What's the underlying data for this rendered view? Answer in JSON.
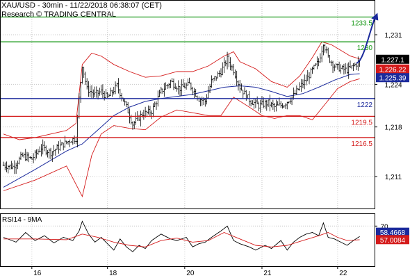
{
  "header": {
    "line1": "XAU/USD - 30min - 11/22/2018 06:38:07 (CET)",
    "line2": "Research © TRADING CENTRAL"
  },
  "chart_data": [
    {
      "type": "candlestick",
      "title": "XAU/USD - 30min - 11/22/2018 06:38:07 (CET)",
      "subtitle": "Research © TRADING CENTRAL",
      "x_tick_labels": [
        {
          "label": "16",
          "bar": 18
        },
        {
          "label": "18",
          "bar": 66
        },
        {
          "label": "20",
          "bar": 115
        },
        {
          "label": "21",
          "bar": 164
        },
        {
          "label": "22",
          "bar": 212
        }
      ],
      "bar_count": 230,
      "y_ticks": [
        1211,
        1218,
        1224,
        1231
      ],
      "y_tick_labels": [
        "1,211",
        "1,218",
        "1,224",
        "1,231"
      ],
      "ylim": [
        1206.5,
        1235.8
      ],
      "levels": [
        {
          "label": "1233.5",
          "value": 1233.5,
          "color": "#1a9a1a"
        },
        {
          "label": "1230",
          "value": 1230.0,
          "color": "#1a9a1a"
        },
        {
          "label": "1222",
          "value": 1222.0,
          "color": "#1b2a9c"
        },
        {
          "label": "1219.5",
          "value": 1219.5,
          "color": "#d41a1a"
        },
        {
          "label": "1216.5",
          "value": 1216.5,
          "color": "#d41a1a"
        }
      ],
      "tags": [
        {
          "label": "1,227.1",
          "value": 1227.1,
          "bg": "#000000",
          "fg": "#ffffff"
        },
        {
          "label": "1,226.22",
          "value": 1226.22,
          "bg": "#d41a1a",
          "fg": "#ffffff"
        },
        {
          "label": "1,225.39",
          "value": 1225.39,
          "bg": "#1b2a9c",
          "fg": "#ffffff"
        }
      ],
      "projection": {
        "from_bar": 224,
        "from_value": 1227.0,
        "to_bar": 236,
        "to_value": 1233.6,
        "color": "#1b2a9c"
      },
      "close_path": [
        [
          0,
          1212.6
        ],
        [
          6,
          1212.4
        ],
        [
          12,
          1213.9
        ],
        [
          18,
          1213.5
        ],
        [
          24,
          1215.1
        ],
        [
          30,
          1214.4
        ],
        [
          36,
          1215.3
        ],
        [
          42,
          1216.1
        ],
        [
          46,
          1216.4
        ],
        [
          48,
          1222.0
        ],
        [
          50,
          1226.8
        ],
        [
          53,
          1223.3
        ],
        [
          58,
          1222.6
        ],
        [
          62,
          1223.0
        ],
        [
          66,
          1222.1
        ],
        [
          72,
          1223.8
        ],
        [
          78,
          1220.8
        ],
        [
          82,
          1218.4
        ],
        [
          88,
          1219.8
        ],
        [
          94,
          1220.2
        ],
        [
          100,
          1223.0
        ],
        [
          106,
          1224.4
        ],
        [
          112,
          1223.4
        ],
        [
          118,
          1224.0
        ],
        [
          124,
          1222.0
        ],
        [
          128,
          1221.6
        ],
        [
          132,
          1224.4
        ],
        [
          138,
          1225.8
        ],
        [
          142,
          1227.6
        ],
        [
          146,
          1226.0
        ],
        [
          150,
          1223.6
        ],
        [
          156,
          1221.8
        ],
        [
          162,
          1221.0
        ],
        [
          168,
          1221.4
        ],
        [
          172,
          1220.8
        ],
        [
          178,
          1221.2
        ],
        [
          184,
          1222.4
        ],
        [
          188,
          1223.6
        ],
        [
          192,
          1224.6
        ],
        [
          196,
          1226.0
        ],
        [
          200,
          1227.2
        ],
        [
          203,
          1229.9
        ],
        [
          206,
          1227.8
        ],
        [
          210,
          1226.6
        ],
        [
          214,
          1226.2
        ],
        [
          218,
          1226.0
        ],
        [
          222,
          1226.6
        ],
        [
          226,
          1227.2
        ]
      ],
      "ma_path": [
        [
          0,
          1209.5
        ],
        [
          20,
          1212.0
        ],
        [
          40,
          1214.6
        ],
        [
          50,
          1215.6
        ],
        [
          60,
          1217.6
        ],
        [
          70,
          1219.6
        ],
        [
          80,
          1220.8
        ],
        [
          90,
          1221.6
        ],
        [
          100,
          1222.0
        ],
        [
          110,
          1222.3
        ],
        [
          120,
          1222.6
        ],
        [
          130,
          1223.1
        ],
        [
          140,
          1223.6
        ],
        [
          150,
          1223.8
        ],
        [
          160,
          1223.6
        ],
        [
          170,
          1223.0
        ],
        [
          180,
          1222.3
        ],
        [
          190,
          1222.7
        ],
        [
          200,
          1223.6
        ],
        [
          210,
          1224.6
        ],
        [
          220,
          1225.4
        ],
        [
          226,
          1225.5
        ]
      ],
      "bollinger_upper": [
        [
          0,
          1217.0
        ],
        [
          10,
          1216.2
        ],
        [
          20,
          1216.5
        ],
        [
          30,
          1217.0
        ],
        [
          40,
          1217.5
        ],
        [
          46,
          1218.5
        ],
        [
          50,
          1226.8
        ],
        [
          56,
          1228.4
        ],
        [
          62,
          1228.0
        ],
        [
          70,
          1226.8
        ],
        [
          80,
          1225.8
        ],
        [
          90,
          1225.0
        ],
        [
          100,
          1225.2
        ],
        [
          110,
          1225.8
        ],
        [
          120,
          1225.8
        ],
        [
          130,
          1226.6
        ],
        [
          140,
          1228.0
        ],
        [
          146,
          1228.6
        ],
        [
          150,
          1227.2
        ],
        [
          160,
          1226.2
        ],
        [
          170,
          1224.4
        ],
        [
          180,
          1223.6
        ],
        [
          188,
          1225.2
        ],
        [
          196,
          1227.8
        ],
        [
          202,
          1230.0
        ],
        [
          208,
          1229.6
        ],
        [
          214,
          1228.8
        ],
        [
          220,
          1228.0
        ],
        [
          226,
          1227.6
        ]
      ],
      "bollinger_lower": [
        [
          0,
          1209.0
        ],
        [
          20,
          1210.5
        ],
        [
          40,
          1212.5
        ],
        [
          50,
          1208.2
        ],
        [
          56,
          1214.0
        ],
        [
          62,
          1217.0
        ],
        [
          70,
          1218.2
        ],
        [
          80,
          1217.8
        ],
        [
          90,
          1217.6
        ],
        [
          100,
          1219.4
        ],
        [
          110,
          1220.4
        ],
        [
          120,
          1220.0
        ],
        [
          130,
          1219.6
        ],
        [
          138,
          1219.6
        ],
        [
          146,
          1222.2
        ],
        [
          156,
          1220.8
        ],
        [
          164,
          1219.6
        ],
        [
          172,
          1219.2
        ],
        [
          180,
          1219.6
        ],
        [
          188,
          1219.6
        ],
        [
          196,
          1219.0
        ],
        [
          204,
          1221.2
        ],
        [
          212,
          1223.4
        ],
        [
          220,
          1224.4
        ],
        [
          226,
          1224.8
        ]
      ]
    },
    {
      "type": "line",
      "title": "RSI14 - 9MA",
      "ylim": [
        20,
        85
      ],
      "y_ticks": [
        70
      ],
      "y_tick_labels": [
        "70"
      ],
      "series": [
        {
          "name": "RSI14",
          "color": "#000000",
          "path": [
            [
              0,
              56
            ],
            [
              8,
              50
            ],
            [
              14,
              62
            ],
            [
              20,
              52
            ],
            [
              26,
              58
            ],
            [
              32,
              49
            ],
            [
              38,
              56
            ],
            [
              44,
              52
            ],
            [
              48,
              64
            ],
            [
              50,
              76
            ],
            [
              54,
              60
            ],
            [
              58,
              50
            ],
            [
              62,
              56
            ],
            [
              66,
              48
            ],
            [
              70,
              40
            ],
            [
              74,
              54
            ],
            [
              78,
              44
            ],
            [
              82,
              38
            ],
            [
              86,
              46
            ],
            [
              90,
              42
            ],
            [
              94,
              52
            ],
            [
              100,
              60
            ],
            [
              106,
              54
            ],
            [
              110,
              52
            ],
            [
              116,
              56
            ],
            [
              120,
              44
            ],
            [
              124,
              48
            ],
            [
              128,
              50
            ],
            [
              132,
              56
            ],
            [
              138,
              64
            ],
            [
              142,
              70
            ],
            [
              146,
              52
            ],
            [
              150,
              48
            ],
            [
              156,
              44
            ],
            [
              160,
              40
            ],
            [
              166,
              46
            ],
            [
              170,
              42
            ],
            [
              176,
              52
            ],
            [
              180,
              40
            ],
            [
              184,
              50
            ],
            [
              188,
              56
            ],
            [
              192,
              60
            ],
            [
              196,
              62
            ],
            [
              200,
              58
            ],
            [
              203,
              74
            ],
            [
              206,
              56
            ],
            [
              210,
              54
            ],
            [
              214,
              50
            ],
            [
              218,
              46
            ],
            [
              222,
              52
            ],
            [
              226,
              57
            ]
          ]
        },
        {
          "name": "9MA",
          "color": "#d41a1a",
          "path": [
            [
              0,
              54
            ],
            [
              20,
              54
            ],
            [
              40,
              53
            ],
            [
              50,
              60
            ],
            [
              60,
              56
            ],
            [
              70,
              50
            ],
            [
              80,
              46
            ],
            [
              90,
              44
            ],
            [
              100,
              52
            ],
            [
              110,
              55
            ],
            [
              120,
              50
            ],
            [
              130,
              52
            ],
            [
              140,
              62
            ],
            [
              150,
              54
            ],
            [
              160,
              46
            ],
            [
              170,
              44
            ],
            [
              180,
              46
            ],
            [
              190,
              52
            ],
            [
              200,
              58
            ],
            [
              206,
              62
            ],
            [
              212,
              56
            ],
            [
              218,
              52
            ],
            [
              226,
              53
            ]
          ]
        }
      ],
      "tags": [
        {
          "label": "58.4668",
          "value": 58.4668,
          "bg": "#1b2a9c",
          "fg": "#ffffff"
        },
        {
          "label": "57.0084",
          "value": 57.0084,
          "bg": "#d41a1a",
          "fg": "#ffffff"
        }
      ]
    }
  ]
}
